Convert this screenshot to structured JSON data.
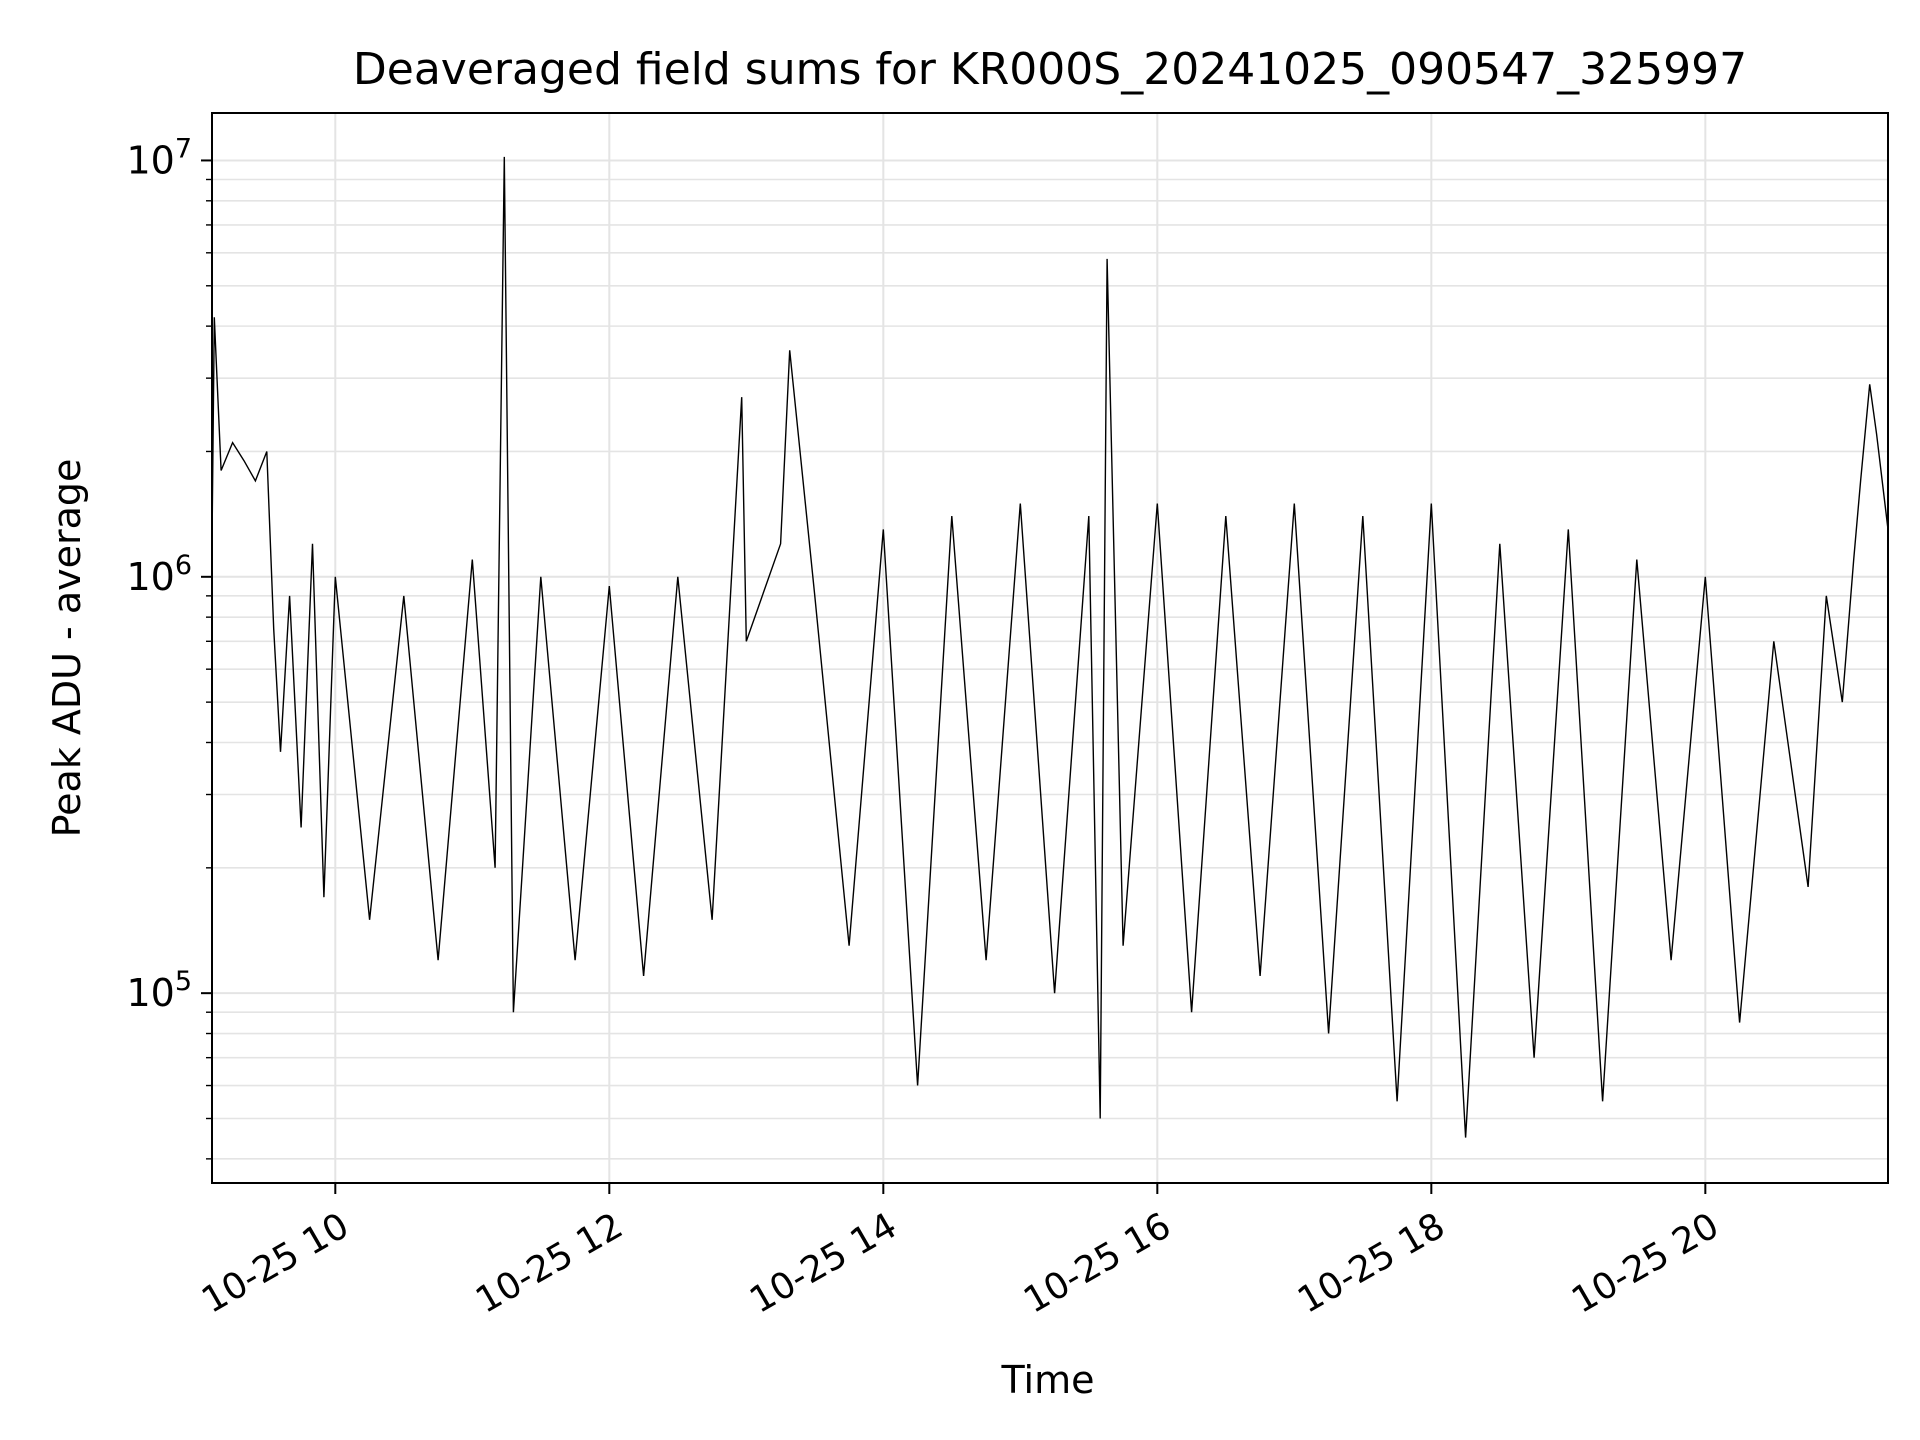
{
  "chart_data": {
    "type": "line",
    "title": "Deaveraged field sums for KR000S_20241025_090547_325997",
    "xlabel": "Time",
    "ylabel": "Peak ADU - average",
    "y_scale": "log",
    "ylim": [
      35000,
      13000000
    ],
    "xlim": [
      "2024-10-25 09:06",
      "2024-10-25 21:20"
    ],
    "x_ticks": [
      "10-25 10",
      "10-25 12",
      "10-25 14",
      "10-25 16",
      "10-25 18",
      "10-25 20"
    ],
    "y_ticks": [
      {
        "base": "10",
        "exp": "7",
        "value": 10000000
      },
      {
        "base": "10",
        "exp": "6",
        "value": 1000000
      },
      {
        "base": "10",
        "exp": "5",
        "value": 100000
      }
    ],
    "grid": true,
    "line_color": "#000000",
    "series": [
      {
        "x": [
          "2024-10-25 09:06",
          "2024-10-25 09:07",
          "2024-10-25 09:10",
          "2024-10-25 09:15",
          "2024-10-25 09:20",
          "2024-10-25 09:25",
          "2024-10-25 09:30",
          "2024-10-25 09:33",
          "2024-10-25 09:36",
          "2024-10-25 09:40",
          "2024-10-25 09:45",
          "2024-10-25 09:50",
          "2024-10-25 09:55",
          "2024-10-25 10:00",
          "2024-10-25 10:15",
          "2024-10-25 10:30",
          "2024-10-25 10:45",
          "2024-10-25 11:00",
          "2024-10-25 11:10",
          "2024-10-25 11:14",
          "2024-10-25 11:18",
          "2024-10-25 11:30",
          "2024-10-25 11:45",
          "2024-10-25 12:00",
          "2024-10-25 12:15",
          "2024-10-25 12:30",
          "2024-10-25 12:45",
          "2024-10-25 12:58",
          "2024-10-25 13:00",
          "2024-10-25 13:15",
          "2024-10-25 13:19",
          "2024-10-25 13:30",
          "2024-10-25 13:45",
          "2024-10-25 14:00",
          "2024-10-25 14:15",
          "2024-10-25 14:30",
          "2024-10-25 14:45",
          "2024-10-25 15:00",
          "2024-10-25 15:15",
          "2024-10-25 15:30",
          "2024-10-25 15:35",
          "2024-10-25 15:38",
          "2024-10-25 15:45",
          "2024-10-25 16:00",
          "2024-10-25 16:15",
          "2024-10-25 16:30",
          "2024-10-25 16:45",
          "2024-10-25 17:00",
          "2024-10-25 17:15",
          "2024-10-25 17:30",
          "2024-10-25 17:45",
          "2024-10-25 18:00",
          "2024-10-25 18:15",
          "2024-10-25 18:30",
          "2024-10-25 18:45",
          "2024-10-25 19:00",
          "2024-10-25 19:15",
          "2024-10-25 19:30",
          "2024-10-25 19:45",
          "2024-10-25 20:00",
          "2024-10-25 20:15",
          "2024-10-25 20:30",
          "2024-10-25 20:45",
          "2024-10-25 20:53",
          "2024-10-25 21:00",
          "2024-10-25 21:05",
          "2024-10-25 21:08",
          "2024-10-25 21:12",
          "2024-10-25 21:15",
          "2024-10-25 21:20"
        ],
        "values": [
          1200000,
          4200000,
          1800000,
          2100000,
          1900000,
          1700000,
          2000000,
          750000,
          380000,
          900000,
          250000,
          1200000,
          170000,
          1000000,
          150000,
          900000,
          120000,
          1100000,
          200000,
          10200000,
          90000,
          1000000,
          120000,
          950000,
          110000,
          1000000,
          150000,
          2700000,
          700000,
          1200000,
          3500000,
          900000,
          130000,
          1300000,
          60000,
          1400000,
          120000,
          1500000,
          100000,
          1400000,
          50000,
          5800000,
          130000,
          1500000,
          90000,
          1400000,
          110000,
          1500000,
          80000,
          1400000,
          55000,
          1500000,
          45000,
          1200000,
          70000,
          1300000,
          55000,
          1100000,
          120000,
          1000000,
          85000,
          700000,
          180000,
          900000,
          500000,
          1100000,
          1700000,
          2900000,
          2200000,
          1300000
        ]
      }
    ]
  }
}
